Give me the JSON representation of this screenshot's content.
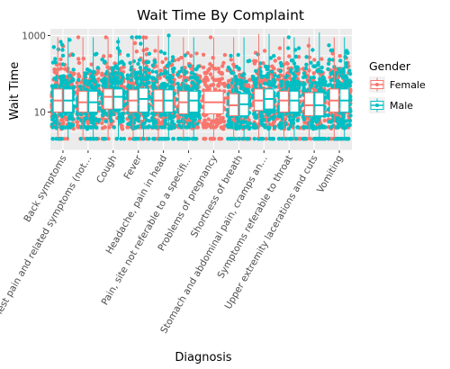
{
  "chart_data": {
    "type": "box",
    "title": "Wait Time By Complaint",
    "xlabel": "Diagnosis",
    "ylabel": "Wait Time",
    "y_scale": "log10",
    "ylim": [
      1,
      1500
    ],
    "y_ticks": [
      {
        "value": 10,
        "label": "10"
      },
      {
        "value": 1000,
        "label": "1000"
      }
    ],
    "grid": true,
    "legend": {
      "title": "Gender",
      "placement": "right",
      "entries": [
        {
          "name": "Female",
          "color": "#F8766D"
        },
        {
          "name": "Male",
          "color": "#00BFC4"
        }
      ]
    },
    "categories": [
      "Back symptoms",
      "Chest pain and related symptoms (not…",
      "Cough",
      "Fever",
      "Headache, pain in head",
      "Pain, site not referable to a specifi…",
      "Problems of pregnancy",
      "Shortness of breath",
      "Stomach and abdominal pain, cramps an…",
      "Symptoms referable to throat",
      "Upper extremity lacerations and cuts",
      "Vomiting"
    ],
    "series": [
      {
        "name": "Female",
        "color": "#F8766D",
        "stats": [
          {
            "min": 2,
            "q1": 10,
            "median": 20,
            "q3": 40,
            "max": 900
          },
          {
            "min": 2,
            "q1": 10,
            "median": 18,
            "q3": 35,
            "max": 900
          },
          {
            "min": 2,
            "q1": 12,
            "median": 25,
            "q3": 40,
            "max": 900
          },
          {
            "min": 2,
            "q1": 10,
            "median": 20,
            "q3": 38,
            "max": 900
          },
          {
            "min": 2,
            "q1": 10,
            "median": 20,
            "q3": 38,
            "max": 1000
          },
          {
            "min": 2,
            "q1": 9,
            "median": 18,
            "q3": 35,
            "max": 900
          },
          {
            "min": 2,
            "q1": 9,
            "median": 18,
            "q3": 35,
            "max": 900
          },
          {
            "min": 2,
            "q1": 8,
            "median": 15,
            "q3": 30,
            "max": 900
          },
          {
            "min": 2,
            "q1": 11,
            "median": 20,
            "q3": 40,
            "max": 1100
          },
          {
            "min": 2,
            "q1": 10,
            "median": 20,
            "q3": 35,
            "max": 900
          },
          {
            "min": 2,
            "q1": 8,
            "median": 15,
            "q3": 32,
            "max": 900
          },
          {
            "min": 2,
            "q1": 10,
            "median": 20,
            "q3": 40,
            "max": 900
          }
        ]
      },
      {
        "name": "Male",
        "color": "#00BFC4",
        "stats": [
          {
            "min": 2,
            "q1": 10,
            "median": 20,
            "q3": 40,
            "max": 900
          },
          {
            "min": 2,
            "q1": 10,
            "median": 18,
            "q3": 35,
            "max": 900
          },
          {
            "min": 2,
            "q1": 12,
            "median": 25,
            "q3": 40,
            "max": 900
          },
          {
            "min": 2,
            "q1": 10,
            "median": 22,
            "q3": 42,
            "max": 900
          },
          {
            "min": 2,
            "q1": 10,
            "median": 20,
            "q3": 38,
            "max": 1000
          },
          {
            "min": 2,
            "q1": 10,
            "median": 20,
            "q3": 35,
            "max": 900
          },
          null,
          {
            "min": 2,
            "q1": 8,
            "median": 16,
            "q3": 30,
            "max": 900
          },
          {
            "min": 2,
            "q1": 12,
            "median": 22,
            "q3": 40,
            "max": 1100
          },
          {
            "min": 2,
            "q1": 10,
            "median": 20,
            "q3": 35,
            "max": 900
          },
          {
            "min": 2,
            "q1": 8,
            "median": 15,
            "q3": 32,
            "max": 1200
          },
          {
            "min": 2,
            "q1": 10,
            "median": 20,
            "q3": 40,
            "max": 900
          }
        ]
      }
    ]
  }
}
